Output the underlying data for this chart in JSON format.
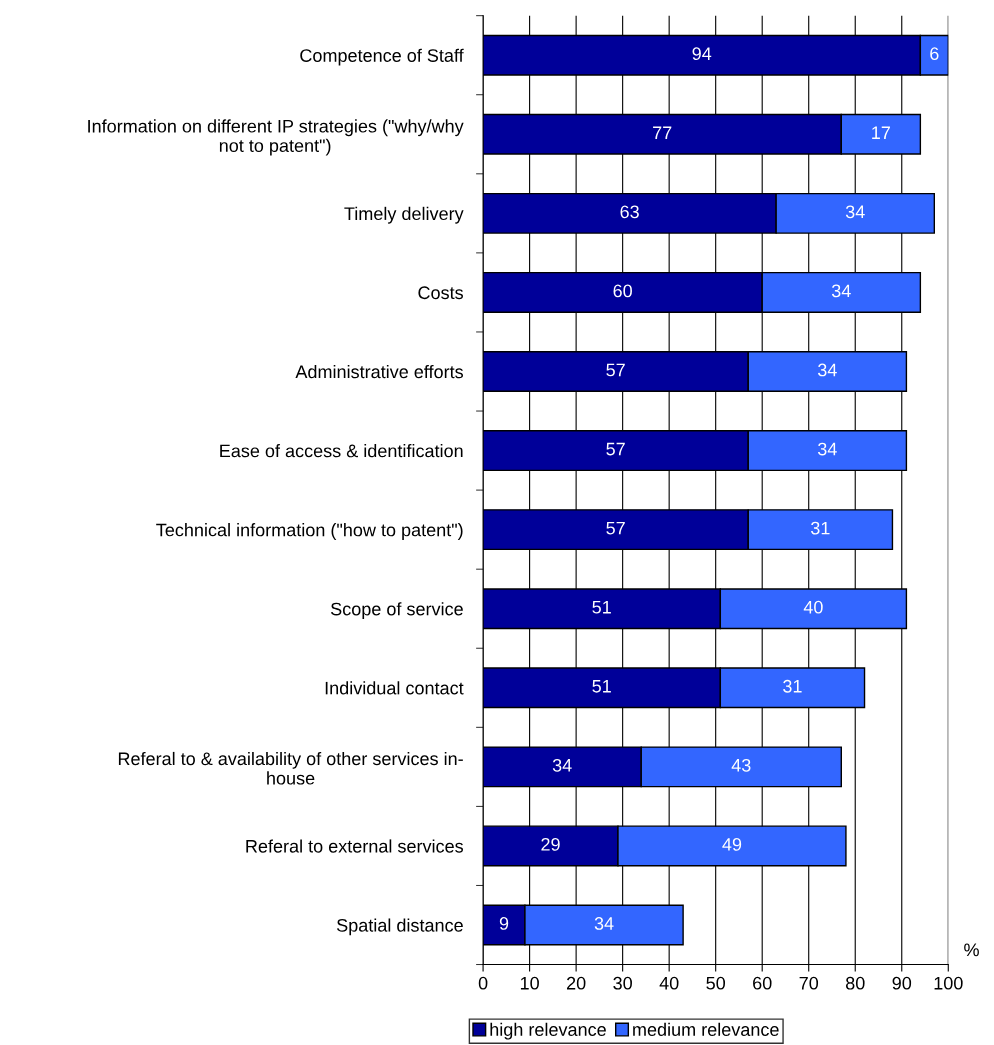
{
  "chart_data": {
    "type": "bar",
    "orientation": "horizontal",
    "stacked": true,
    "xlabel": "%",
    "categories": [
      "Competence of Staff",
      "Information on different IP strategies (\"why/why\nnot to patent\")",
      "Timely delivery",
      "Costs",
      "Administrative efforts",
      "Ease of access & identification",
      "Technical information (\"how to patent\")",
      "Scope of service",
      "Individual contact",
      "Referal to & availability of other services in-\nhouse",
      "Referal to external services",
      "Spatial distance"
    ],
    "series": [
      {
        "name": "high relevance",
        "color": "#000099",
        "values": [
          94,
          77,
          63,
          60,
          57,
          57,
          57,
          51,
          51,
          34,
          29,
          9
        ]
      },
      {
        "name": "medium relevance",
        "color": "#3366ff",
        "values": [
          6,
          17,
          34,
          34,
          34,
          34,
          31,
          40,
          31,
          43,
          49,
          34
        ]
      }
    ],
    "xlim": [
      0,
      100
    ],
    "xticks": [
      0,
      10,
      20,
      30,
      40,
      50,
      60,
      70,
      80,
      90,
      100
    ],
    "grid": "x",
    "data_labels": true,
    "legend": "bottom"
  }
}
